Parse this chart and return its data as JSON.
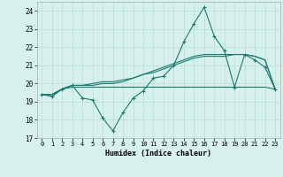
{
  "xlabel": "Humidex (Indice chaleur)",
  "x": [
    0,
    1,
    2,
    3,
    4,
    5,
    6,
    7,
    8,
    9,
    10,
    11,
    12,
    13,
    14,
    15,
    16,
    17,
    18,
    19,
    20,
    21,
    22,
    23
  ],
  "line1": [
    19.4,
    19.3,
    19.7,
    19.9,
    19.2,
    19.1,
    18.1,
    17.4,
    18.4,
    19.2,
    19.6,
    20.3,
    20.4,
    21.0,
    22.3,
    23.3,
    24.2,
    22.6,
    21.8,
    19.8,
    21.6,
    21.3,
    20.9,
    19.7
  ],
  "line2": [
    19.4,
    19.4,
    19.7,
    19.9,
    19.9,
    20.0,
    20.1,
    20.1,
    20.2,
    20.3,
    20.5,
    20.7,
    20.9,
    21.1,
    21.3,
    21.5,
    21.6,
    21.6,
    21.6,
    21.6,
    21.6,
    21.5,
    21.3,
    19.7
  ],
  "line3": [
    19.4,
    19.4,
    19.7,
    19.9,
    19.9,
    19.9,
    20.0,
    20.0,
    20.1,
    20.3,
    20.5,
    20.6,
    20.8,
    21.0,
    21.2,
    21.4,
    21.5,
    21.5,
    21.5,
    21.6,
    21.6,
    21.5,
    21.3,
    19.7
  ],
  "line4": [
    19.4,
    19.3,
    19.7,
    19.8,
    19.8,
    19.8,
    19.8,
    19.8,
    19.8,
    19.8,
    19.8,
    19.8,
    19.8,
    19.8,
    19.8,
    19.8,
    19.8,
    19.8,
    19.8,
    19.8,
    19.8,
    19.8,
    19.8,
    19.7
  ],
  "color": "#1a7a6e",
  "bg_color": "#d6f0ec",
  "grid_color": "#b8ddd8",
  "ylim": [
    17,
    24.5
  ],
  "yticks": [
    17,
    18,
    19,
    20,
    21,
    22,
    23,
    24
  ],
  "xticks": [
    0,
    1,
    2,
    3,
    4,
    5,
    6,
    7,
    8,
    9,
    10,
    11,
    12,
    13,
    14,
    15,
    16,
    17,
    18,
    19,
    20,
    21,
    22,
    23
  ],
  "figsize": [
    3.2,
    2.0
  ],
  "dpi": 100
}
